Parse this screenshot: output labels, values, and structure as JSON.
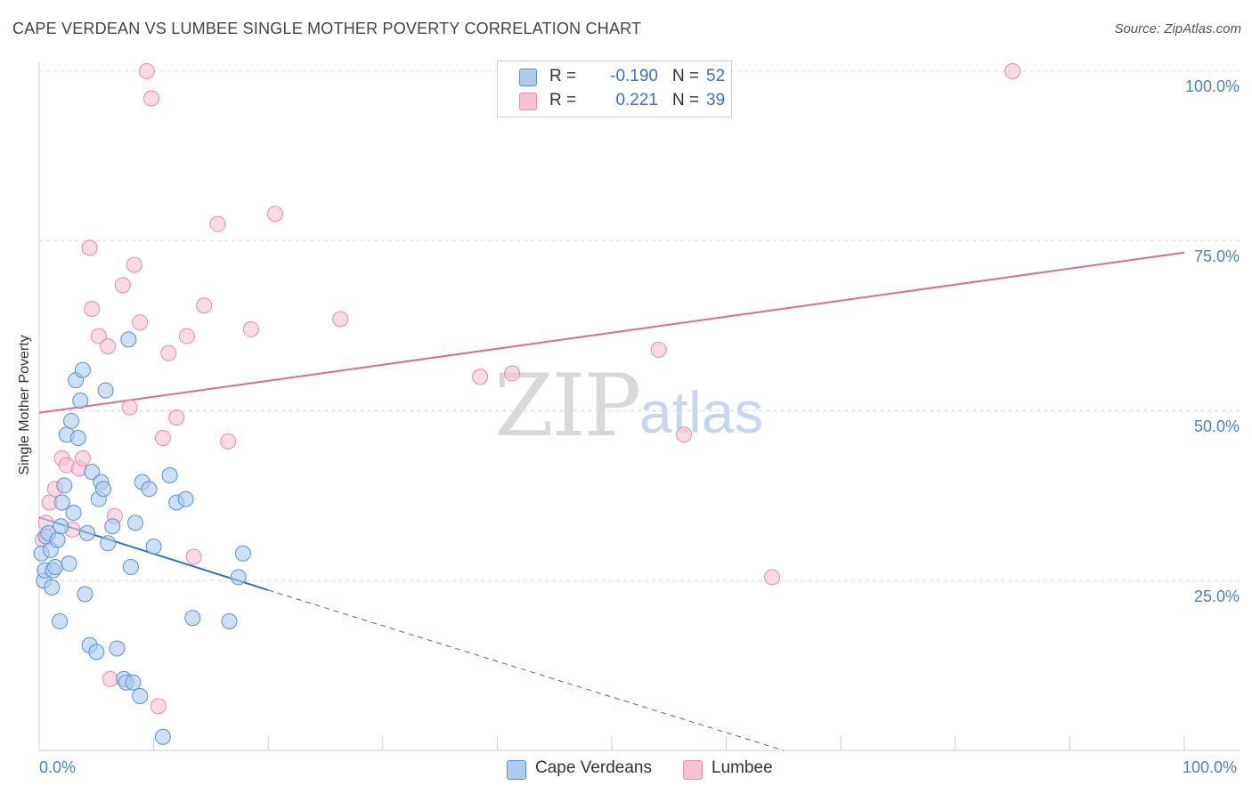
{
  "title": "CAPE VERDEAN VS LUMBEE SINGLE MOTHER POVERTY CORRELATION CHART",
  "source": "Source: ZipAtlas.com",
  "watermark": {
    "zip": "ZIP",
    "atlas": "atlas"
  },
  "colors": {
    "blue_fill": "#aecbf0",
    "blue_stroke": "#5b8fd6",
    "blue_line": "#2f6fd0",
    "pink_fill": "#f7c3d3",
    "pink_stroke": "#e98aab",
    "pink_line": "#e06a96",
    "tick_text": "#4a7fcb"
  },
  "legend": {
    "rows": [
      {
        "r_label": "R =",
        "r_value": "-0.190",
        "n_label": "N =",
        "n_value": "52"
      },
      {
        "r_label": "R =",
        "r_value": "0.221",
        "n_label": "N =",
        "n_value": "39"
      }
    ]
  },
  "bottom_legend": {
    "blue_label": "Cape Verdeans",
    "pink_label": "Lumbee"
  },
  "chart_data": {
    "type": "scatter",
    "title": "CAPE VERDEAN VS LUMBEE SINGLE MOTHER POVERTY CORRELATION CHART",
    "xlabel": "",
    "ylabel": "Single Mother Poverty",
    "xlim": [
      0,
      100
    ],
    "ylim": [
      0,
      102
    ],
    "x_tick_labels": {
      "left": "0.0%",
      "right": "100.0%"
    },
    "y_tick_labels": [
      "25.0%",
      "50.0%",
      "75.0%",
      "100.0%"
    ],
    "y_tick_values": [
      25,
      50,
      75,
      100
    ],
    "grid": true,
    "series": [
      {
        "name": "Cape Verdeans",
        "color": "blue",
        "points": [
          [
            0.2,
            29
          ],
          [
            0.4,
            25
          ],
          [
            0.5,
            26.5
          ],
          [
            0.6,
            31.5
          ],
          [
            0.8,
            32
          ],
          [
            1.0,
            29.5
          ],
          [
            1.1,
            24
          ],
          [
            1.2,
            26.5
          ],
          [
            1.4,
            27
          ],
          [
            1.6,
            31
          ],
          [
            1.8,
            19
          ],
          [
            1.9,
            33
          ],
          [
            2.0,
            36.5
          ],
          [
            2.2,
            39
          ],
          [
            2.4,
            46.5
          ],
          [
            2.6,
            27.5
          ],
          [
            2.8,
            48.5
          ],
          [
            3.0,
            35
          ],
          [
            3.2,
            54.5
          ],
          [
            3.4,
            46
          ],
          [
            3.6,
            51.5
          ],
          [
            3.8,
            56
          ],
          [
            4.0,
            23
          ],
          [
            4.2,
            32
          ],
          [
            4.4,
            15.5
          ],
          [
            4.6,
            41
          ],
          [
            5.0,
            14.5
          ],
          [
            5.2,
            37
          ],
          [
            5.4,
            39.5
          ],
          [
            5.6,
            38.5
          ],
          [
            5.8,
            53
          ],
          [
            6.0,
            30.5
          ],
          [
            6.4,
            33
          ],
          [
            6.8,
            15
          ],
          [
            7.4,
            10.5
          ],
          [
            7.6,
            10
          ],
          [
            7.8,
            60.5
          ],
          [
            8.0,
            27
          ],
          [
            8.2,
            10
          ],
          [
            8.4,
            33.5
          ],
          [
            8.8,
            8
          ],
          [
            9.0,
            39.5
          ],
          [
            9.6,
            38.5
          ],
          [
            10.0,
            30
          ],
          [
            10.8,
            2
          ],
          [
            11.4,
            40.5
          ],
          [
            12.0,
            36.5
          ],
          [
            12.8,
            37
          ],
          [
            13.4,
            19.5
          ],
          [
            16.6,
            19
          ],
          [
            17.4,
            25.5
          ],
          [
            17.8,
            29
          ]
        ]
      },
      {
        "name": "Lumbee",
        "color": "pink",
        "points": [
          [
            0.3,
            31
          ],
          [
            0.6,
            33.5
          ],
          [
            0.9,
            36.5
          ],
          [
            1.4,
            38.5
          ],
          [
            2.0,
            43
          ],
          [
            2.4,
            42
          ],
          [
            2.9,
            32.5
          ],
          [
            3.5,
            41.5
          ],
          [
            3.8,
            43
          ],
          [
            4.4,
            74
          ],
          [
            4.6,
            65
          ],
          [
            5.2,
            61
          ],
          [
            6.0,
            59.5
          ],
          [
            6.2,
            10.5
          ],
          [
            6.6,
            34.5
          ],
          [
            7.3,
            68.5
          ],
          [
            7.9,
            50.5
          ],
          [
            8.3,
            71.5
          ],
          [
            8.8,
            63
          ],
          [
            9.4,
            100
          ],
          [
            9.8,
            96
          ],
          [
            10.4,
            6.5
          ],
          [
            10.8,
            46
          ],
          [
            11.3,
            58.5
          ],
          [
            12.0,
            49
          ],
          [
            12.9,
            61
          ],
          [
            13.5,
            28.5
          ],
          [
            14.4,
            65.5
          ],
          [
            15.6,
            77.5
          ],
          [
            16.5,
            45.5
          ],
          [
            18.5,
            62
          ],
          [
            20.6,
            79
          ],
          [
            26.3,
            63.5
          ],
          [
            38.5,
            55
          ],
          [
            41.3,
            55.5
          ],
          [
            54.1,
            59
          ],
          [
            56.3,
            46.5
          ],
          [
            64.0,
            25.5
          ],
          [
            85.0,
            100
          ]
        ]
      }
    ],
    "trend_lines": [
      {
        "series": "Cape Verdeans",
        "solid_from": [
          0,
          34.3
        ],
        "solid_to": [
          20,
          23.6
        ],
        "dashed_to": [
          65,
          0
        ]
      },
      {
        "series": "Lumbee",
        "from": [
          0,
          49.7
        ],
        "to": [
          100,
          73.3
        ]
      }
    ]
  }
}
